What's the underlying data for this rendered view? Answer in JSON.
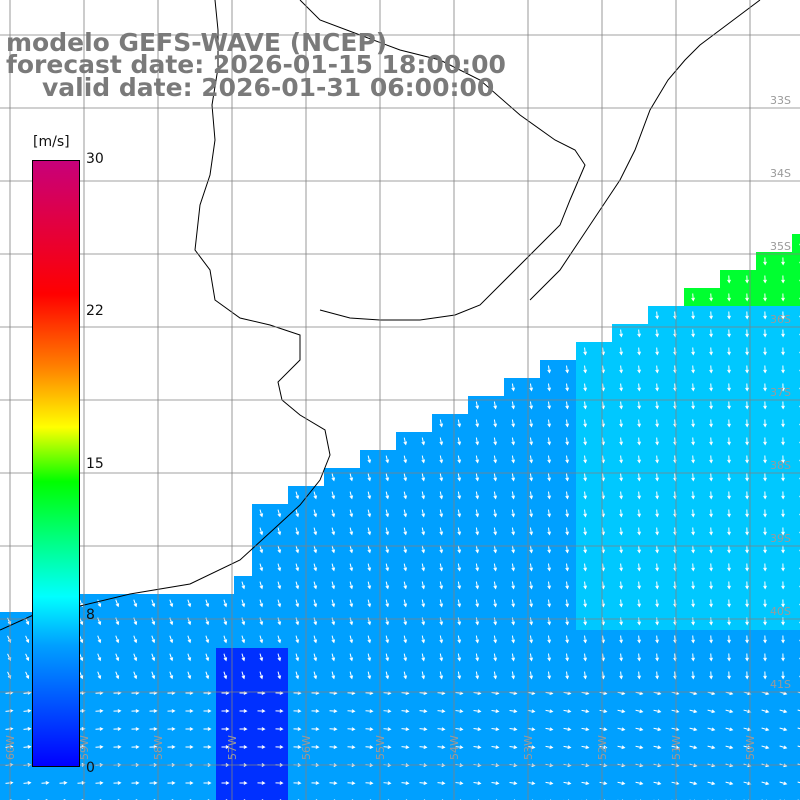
{
  "header": {
    "line1": "modelo GEFS-WAVE (NCEP)",
    "line2": "forecast date: 2026-01-15 18:00:00",
    "line3": "valid date: 2026-01-31 06:00:00"
  },
  "legend": {
    "unit": "[m/s]",
    "ticks": [
      "30",
      "22",
      "15",
      "8",
      "0"
    ],
    "colors": [
      "#0000ff",
      "#00a0ff",
      "#00ffff",
      "#00ff00",
      "#ffff00",
      "#ff8000",
      "#ff0000",
      "#c8007a"
    ]
  },
  "grid": {
    "lat_labels": [
      "33S",
      "34S",
      "35S",
      "36S",
      "37S",
      "38S",
      "39S",
      "40S",
      "41S"
    ],
    "lon_labels": [
      "60W",
      "59W",
      "58W",
      "57W",
      "56W",
      "55W",
      "54W",
      "53W",
      "52W",
      "51W",
      "50W"
    ]
  },
  "map_style": {
    "ocean_low": "#0030ff",
    "ocean_mid": "#00a0ff",
    "ocean_high": "#00ff30",
    "land": "#ffffff",
    "arrow": "#ffffff",
    "grid_line": "#808080"
  }
}
